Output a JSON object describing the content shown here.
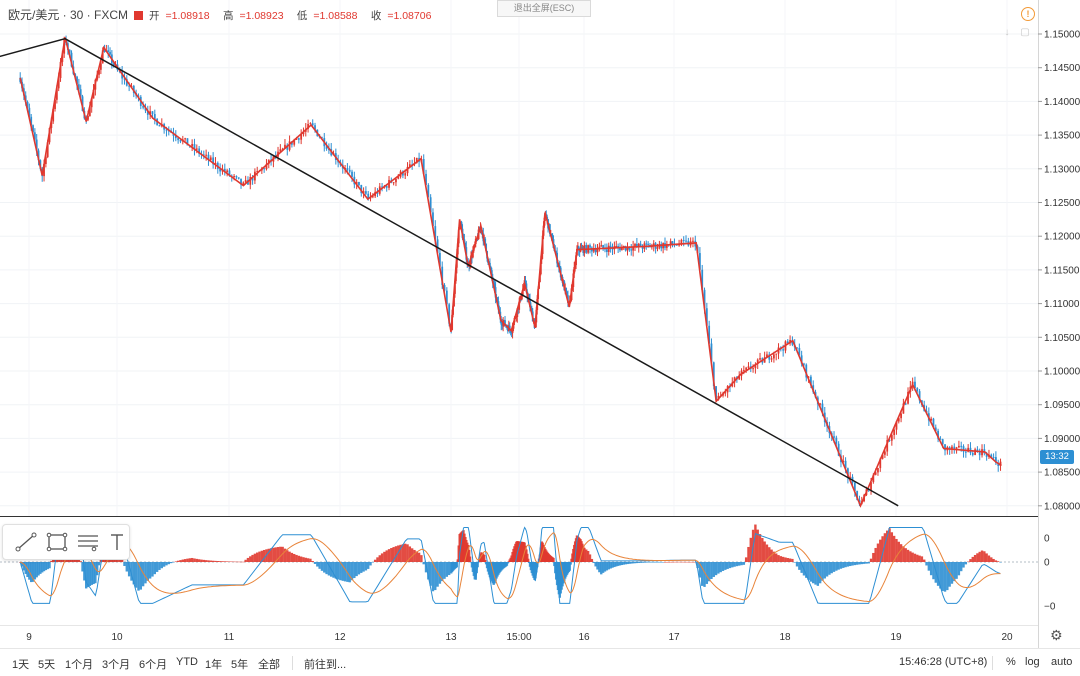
{
  "header": {
    "symbol": "欧元/美元 · 30 · FXCM",
    "open_label": "开",
    "open_value": "=1.08918",
    "high_label": "高",
    "high_value": "=1.08923",
    "low_label": "低",
    "low_value": "=1.08588",
    "close_label": "收",
    "close_value": "=1.08706",
    "exit_fullscreen": "退出全屏(ESC)"
  },
  "price_axis": {
    "ticks": [
      "1.15000",
      "1.14500",
      "1.14000",
      "1.13500",
      "1.13000",
      "1.12500",
      "1.12000",
      "1.11500",
      "1.11000",
      "1.10500",
      "1.10000",
      "1.09500",
      "1.09000",
      "1.08500",
      "1.08000"
    ],
    "current_time_tag": "13:32"
  },
  "indicator_axis": {
    "ticks": [
      "0",
      "0",
      "−0"
    ]
  },
  "time_axis": {
    "ticks": [
      "9",
      "10",
      "11",
      "12",
      "13",
      "15:00",
      "16",
      "17",
      "18",
      "19",
      "20"
    ]
  },
  "bottom_bar": {
    "ranges": [
      "1天",
      "5天",
      "1个月",
      "3个月",
      "6个月",
      "YTD",
      "1年",
      "5年",
      "全部"
    ],
    "goto": "前往到...",
    "clock": "15:46:28 (UTC+8)",
    "percent": "%",
    "log": "log",
    "auto": "auto"
  },
  "colors": {
    "up": "#e0382f",
    "down": "#2d8fd3",
    "zigzag": "#e0382f",
    "trendline": "#1a1a1a"
  },
  "chart_data": {
    "type": "candlestick",
    "title": "",
    "xlabel": "",
    "ylabel": "",
    "ylim": [
      1.0785,
      1.1545
    ],
    "x_range": [
      "9",
      "20"
    ],
    "zigzag": {
      "x": [
        8.9,
        9.15,
        9.41,
        9.65,
        9.85,
        10.32,
        11.13,
        11.74,
        12.25,
        12.73,
        13.0,
        13.19,
        13.38,
        13.66,
        14.1,
        14.33,
        14.63,
        14.87,
        15.1,
        15.66,
        15.84,
        16.7,
        17.2,
        17.38,
        17.6,
        18.07,
        18.68,
        18.94,
        19.15,
        19.43,
        19.8,
        19.9,
        19.95
      ],
      "y": [
        1.1435,
        1.129,
        1.1495,
        1.137,
        1.148,
        1.1375,
        1.1275,
        1.1365,
        1.1255,
        1.1315,
        1.1058,
        1.1225,
        1.1155,
        1.1215,
        1.1075,
        1.106,
        1.113,
        1.1065,
        1.1235,
        1.1095,
        1.118,
        1.1185,
        1.119,
        1.0955,
        1.0995,
        1.1045,
        1.08,
        1.09,
        1.098,
        1.0885,
        1.088,
        1.0865,
        1.086
      ]
    },
    "trendline": {
      "x": [
        8.62,
        9.41,
        19.02
      ],
      "y": [
        1.1465,
        1.1493,
        1.08
      ]
    },
    "macd": {
      "histogram_note": "values in indicator units",
      "ylim": [
        -1,
        1
      ]
    },
    "last_price": 1.08706,
    "grid": true,
    "legend": "none"
  }
}
